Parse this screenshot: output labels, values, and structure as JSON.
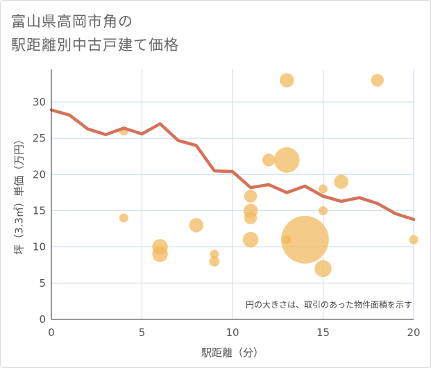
{
  "title": {
    "line1": "富山県高岡市角の",
    "line2": "駅距離別中古戸建て価格"
  },
  "chart_data": {
    "type": "scatter",
    "xlabel": "駅距離（分）",
    "ylabel": "坪（3.3㎡）単価（万円）",
    "xlim": [
      0,
      20
    ],
    "ylim": [
      0,
      34.5
    ],
    "x_ticks": [
      "0",
      "5",
      "10",
      "15",
      "20"
    ],
    "y_ticks": [
      "0",
      "5",
      "10",
      "15",
      "20",
      "25",
      "30"
    ],
    "grid": true,
    "note": "円の大きさは、取引のあった物件面積を示す",
    "colors": {
      "bubble": "#f1b75a",
      "line": "#d4735a",
      "grid": "#c9d9e8"
    },
    "bubbles": [
      {
        "x": 4,
        "y": 26,
        "size": 1
      },
      {
        "x": 4,
        "y": 14,
        "size": 1
      },
      {
        "x": 6,
        "y": 10,
        "size": 3
      },
      {
        "x": 6,
        "y": 9,
        "size": 3
      },
      {
        "x": 8,
        "y": 13,
        "size": 2.5
      },
      {
        "x": 9,
        "y": 9,
        "size": 1
      },
      {
        "x": 9,
        "y": 8,
        "size": 1.3
      },
      {
        "x": 11,
        "y": 17,
        "size": 2
      },
      {
        "x": 11,
        "y": 15,
        "size": 2.5
      },
      {
        "x": 11,
        "y": 14,
        "size": 2
      },
      {
        "x": 11,
        "y": 11,
        "size": 3
      },
      {
        "x": 12,
        "y": 22,
        "size": 2
      },
      {
        "x": 13,
        "y": 33,
        "size": 2.5
      },
      {
        "x": 13,
        "y": 22,
        "size": 8
      },
      {
        "x": 13,
        "y": 11,
        "size": 1
      },
      {
        "x": 14,
        "y": 11,
        "size": 28
      },
      {
        "x": 15,
        "y": 18,
        "size": 1
      },
      {
        "x": 15,
        "y": 15,
        "size": 1
      },
      {
        "x": 15,
        "y": 7,
        "size": 3.5
      },
      {
        "x": 16,
        "y": 19,
        "size": 2.5
      },
      {
        "x": 18,
        "y": 33,
        "size": 2
      },
      {
        "x": 20,
        "y": 11,
        "size": 1
      }
    ],
    "trend_line": {
      "x": [
        0,
        1,
        2,
        3,
        4,
        5,
        6,
        7,
        8,
        9,
        10,
        11,
        12,
        13,
        14,
        15,
        16,
        17,
        18,
        19,
        20
      ],
      "y": [
        28.9,
        28.2,
        26.3,
        25.5,
        26.4,
        25.6,
        27.0,
        24.7,
        24.0,
        20.5,
        20.4,
        18.2,
        18.6,
        17.5,
        18.4,
        17.0,
        16.3,
        16.8,
        16.0,
        14.6,
        13.8
      ]
    }
  }
}
